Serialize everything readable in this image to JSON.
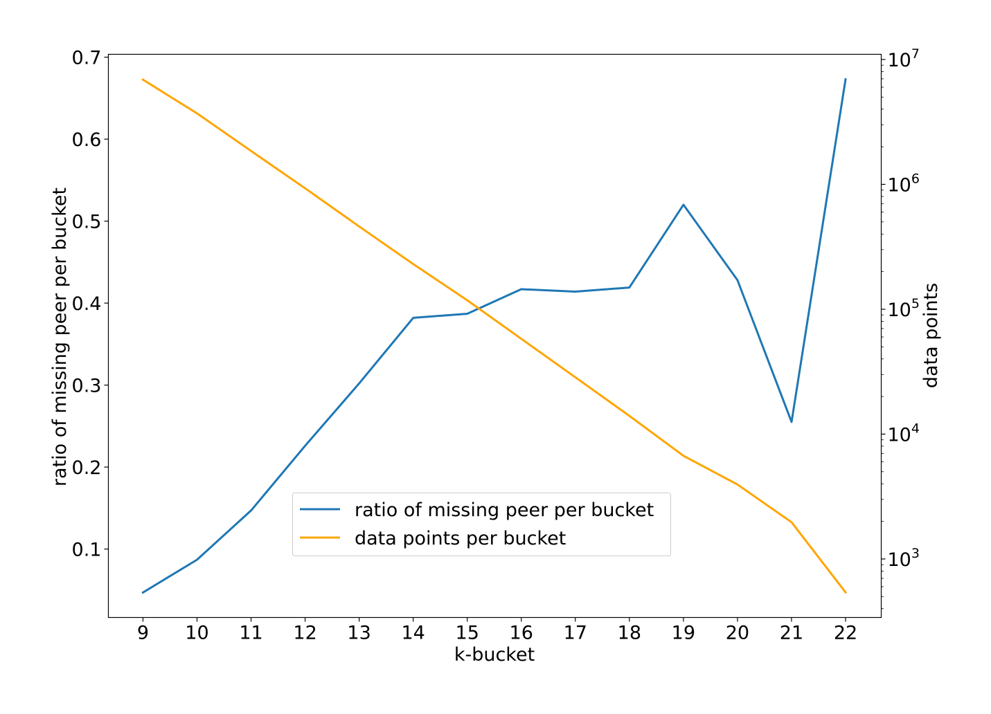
{
  "chart_data": {
    "type": "line",
    "xlabel": "k-bucket",
    "ylabel_left": "ratio of missing peer per bucket",
    "ylabel_right": "data points",
    "x": [
      9,
      10,
      11,
      12,
      13,
      14,
      15,
      16,
      17,
      18,
      19,
      20,
      21,
      22
    ],
    "x_ticks": [
      "9",
      "10",
      "11",
      "12",
      "13",
      "14",
      "15",
      "16",
      "17",
      "18",
      "19",
      "20",
      "21",
      "22"
    ],
    "y_left_ticks": [
      {
        "value": 0.1,
        "label": "0.1"
      },
      {
        "value": 0.2,
        "label": "0.2"
      },
      {
        "value": 0.3,
        "label": "0.3"
      },
      {
        "value": 0.4,
        "label": "0.4"
      },
      {
        "value": 0.5,
        "label": "0.5"
      },
      {
        "value": 0.6,
        "label": "0.6"
      },
      {
        "value": 0.7,
        "label": "0.7"
      }
    ],
    "y_right_scale": "log",
    "y_right_ticks": [
      {
        "value": 1000,
        "mantissa": "10",
        "exp": "3"
      },
      {
        "value": 10000,
        "mantissa": "10",
        "exp": "4"
      },
      {
        "value": 100000,
        "mantissa": "10",
        "exp": "5"
      },
      {
        "value": 1000000,
        "mantissa": "10",
        "exp": "6"
      },
      {
        "value": 10000000,
        "mantissa": "10",
        "exp": "7"
      }
    ],
    "ylim_left": [
      0.0165,
      0.7035
    ],
    "ylim_right": [
      340,
      11000000
    ],
    "xlim": [
      8.36,
      22.66
    ],
    "grid": false,
    "legend_placement": "lower center",
    "series": [
      {
        "name": "ratio of missing peer per bucket",
        "axis": "left",
        "color": "#1f77b4",
        "values": [
          0.047,
          0.087,
          0.147,
          0.226,
          0.302,
          0.382,
          0.387,
          0.417,
          0.414,
          0.419,
          0.52,
          0.428,
          0.255,
          0.673
        ]
      },
      {
        "name": "data points per bucket",
        "axis": "right",
        "color": "#ffa500",
        "values": [
          6900000,
          3700000,
          1850000,
          930000,
          460000,
          230000,
          118000,
          58000,
          28500,
          14000,
          6700,
          3950,
          1970,
          540
        ]
      }
    ]
  }
}
